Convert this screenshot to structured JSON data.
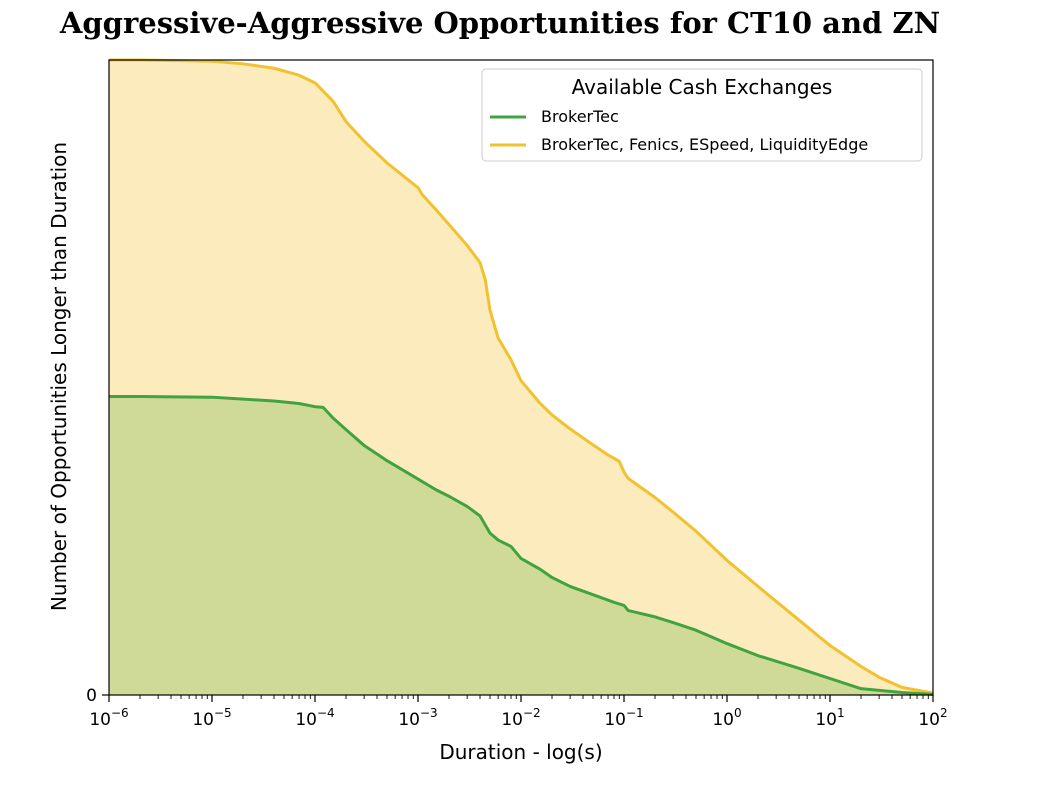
{
  "chart_data": {
    "type": "area",
    "title": "Aggressive-Aggressive Opportunities for CT10 and ZN",
    "xlabel": "Duration - log(s)",
    "ylabel": "Number of Opportunities Longer than Duration",
    "x_scale": "log",
    "xlim": [
      1e-06,
      100
    ],
    "ylim": [
      0,
      1
    ],
    "y_ticks": [
      {
        "value": 0,
        "label": "0"
      }
    ],
    "x_ticks": [
      {
        "value": 1e-06,
        "base": "10",
        "exp": "−6"
      },
      {
        "value": 1e-05,
        "base": "10",
        "exp": "−5"
      },
      {
        "value": 0.0001,
        "base": "10",
        "exp": "−4"
      },
      {
        "value": 0.001,
        "base": "10",
        "exp": "−3"
      },
      {
        "value": 0.01,
        "base": "10",
        "exp": "−2"
      },
      {
        "value": 0.1,
        "base": "10",
        "exp": "−1"
      },
      {
        "value": 1,
        "base": "10",
        "exp": "0"
      },
      {
        "value": 10,
        "base": "10",
        "exp": "1"
      },
      {
        "value": 100,
        "base": "10",
        "exp": "2"
      }
    ],
    "legend": {
      "title": "Available Cash Exchanges",
      "placement": "top-right"
    },
    "series": [
      {
        "name": "BrokerTec, Fenics, ESpeed, LiquidityEdge",
        "color": "#f2c12e",
        "fill": "#fcebbd",
        "x": [
          1e-06,
          2e-06,
          5e-06,
          1e-05,
          2e-05,
          4e-05,
          7e-05,
          0.0001,
          0.00015,
          0.0002,
          0.0003,
          0.0005,
          0.00075,
          0.001,
          0.0011,
          0.0015,
          0.002,
          0.003,
          0.004,
          0.0045,
          0.005,
          0.006,
          0.008,
          0.01,
          0.015,
          0.02,
          0.03,
          0.05,
          0.07,
          0.09,
          0.1,
          0.11,
          0.2,
          0.3,
          0.5,
          1,
          2,
          5,
          10,
          20,
          30,
          50,
          100
        ],
        "y": [
          1.0,
          1.0,
          0.999,
          0.998,
          0.994,
          0.987,
          0.976,
          0.964,
          0.935,
          0.903,
          0.872,
          0.838,
          0.815,
          0.799,
          0.788,
          0.764,
          0.741,
          0.708,
          0.681,
          0.654,
          0.606,
          0.562,
          0.528,
          0.495,
          0.461,
          0.441,
          0.419,
          0.394,
          0.378,
          0.368,
          0.351,
          0.341,
          0.311,
          0.288,
          0.258,
          0.212,
          0.171,
          0.118,
          0.078,
          0.045,
          0.028,
          0.012,
          0.003
        ]
      },
      {
        "name": "BrokerTec",
        "color": "#3fa43f",
        "fill": "#d0da97",
        "x": [
          1e-06,
          2e-06,
          1e-05,
          2e-05,
          4e-05,
          7e-05,
          0.0001,
          0.00012,
          0.00015,
          0.0002,
          0.0003,
          0.0005,
          0.0007,
          0.001,
          0.0015,
          0.002,
          0.003,
          0.004,
          0.005,
          0.006,
          0.008,
          0.01,
          0.015,
          0.02,
          0.03,
          0.05,
          0.08,
          0.1,
          0.11,
          0.2,
          0.3,
          0.5,
          1,
          2,
          5,
          10,
          20,
          50,
          100
        ],
        "y": [
          0.47,
          0.47,
          0.469,
          0.466,
          0.463,
          0.459,
          0.454,
          0.453,
          0.436,
          0.418,
          0.393,
          0.369,
          0.355,
          0.34,
          0.323,
          0.313,
          0.297,
          0.282,
          0.255,
          0.244,
          0.234,
          0.215,
          0.199,
          0.185,
          0.171,
          0.158,
          0.146,
          0.141,
          0.133,
          0.123,
          0.114,
          0.102,
          0.081,
          0.062,
          0.042,
          0.026,
          0.01,
          0.004,
          0.001
        ]
      }
    ]
  }
}
